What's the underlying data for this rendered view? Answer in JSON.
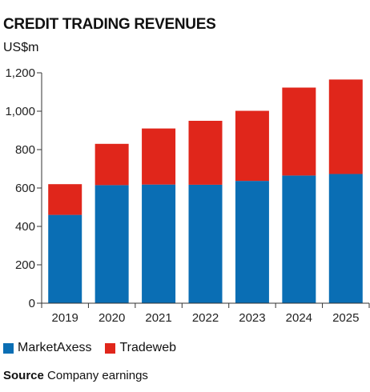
{
  "chart_data": {
    "type": "bar",
    "stacked": true,
    "title": "CREDIT TRADING REVENUES",
    "unit_label": "US$m",
    "categories": [
      "2019",
      "2020",
      "2021",
      "2022",
      "2023",
      "2024",
      "2025"
    ],
    "series": [
      {
        "name": "MarketAxess",
        "color": "#0a6eb4",
        "values": [
          460,
          615,
          618,
          617,
          637,
          665,
          673
        ]
      },
      {
        "name": "Tradeweb",
        "color": "#e0261b",
        "values": [
          160,
          215,
          292,
          333,
          365,
          458,
          492
        ]
      }
    ],
    "y_ticks": [
      "0",
      "200",
      "400",
      "600",
      "800",
      "1,000",
      "1,200"
    ],
    "ylim": [
      0,
      1200
    ],
    "grid": false,
    "legend_position": "bottom-left"
  },
  "source": {
    "label": "Source",
    "text": "Company earnings"
  }
}
